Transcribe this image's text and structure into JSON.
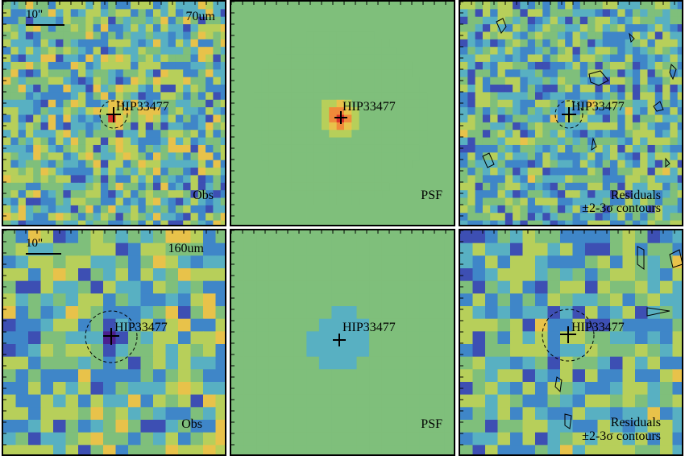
{
  "target_name": "HIP33477",
  "scale_bar_label": "10\"",
  "rows": [
    {
      "band": "70um",
      "panels": [
        {
          "kind": "obs",
          "corner_label": "Obs"
        },
        {
          "kind": "psf",
          "corner_label": "PSF"
        },
        {
          "kind": "residuals",
          "corner_label": "Residuals",
          "corner_label_2": "±2-3σ contours"
        }
      ]
    },
    {
      "band": "160um",
      "panels": [
        {
          "kind": "obs",
          "corner_label": "Obs"
        },
        {
          "kind": "psf",
          "corner_label": "PSF"
        },
        {
          "kind": "residuals",
          "corner_label": "Residuals",
          "corner_label_2": "±2-3σ contours"
        }
      ]
    }
  ],
  "colors": {
    "background_green": "#7fbf7b",
    "colormap": [
      "#4b1f8f",
      "#3d4fb3",
      "#3f86c8",
      "#58b0c2",
      "#7fbf7b",
      "#b7cf5a",
      "#e8c24a",
      "#f08a3a",
      "#d9302a"
    ]
  }
}
